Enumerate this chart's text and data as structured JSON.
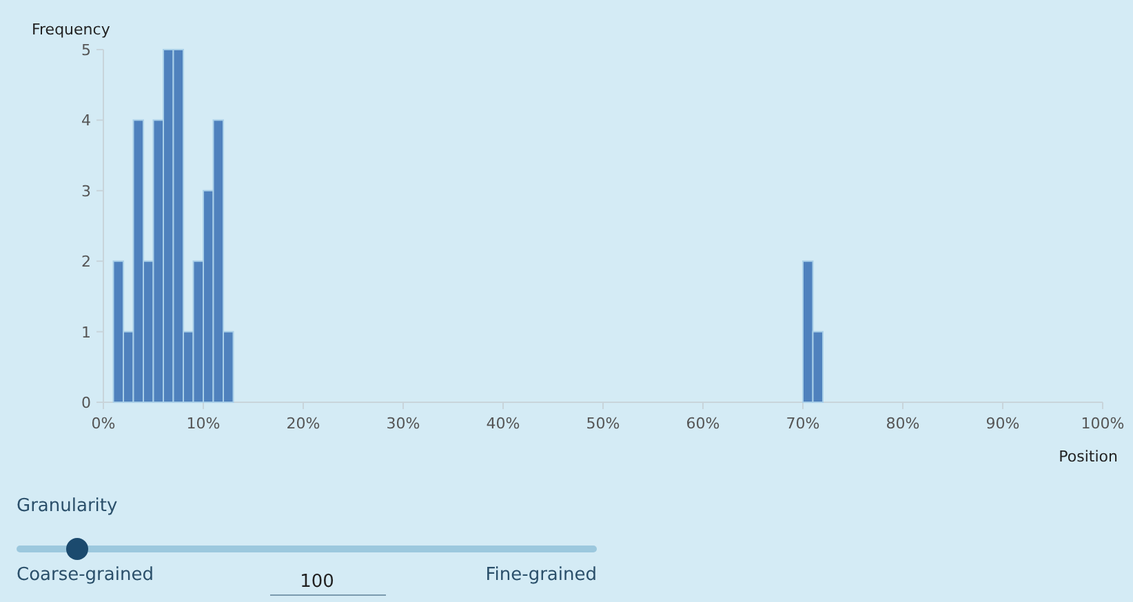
{
  "chart_data": {
    "type": "histogram",
    "xlabel": "Position",
    "ylabel": "Frequency",
    "color": "#4f81bd",
    "bins": [
      1,
      2,
      3,
      4,
      5,
      6,
      7,
      8,
      9,
      10,
      11,
      12,
      13,
      14,
      15,
      16,
      17,
      18,
      19,
      20,
      21,
      22,
      23,
      24,
      25,
      26,
      27,
      28,
      29,
      30,
      31,
      32,
      33,
      34,
      35,
      36,
      37,
      38,
      39,
      40,
      41,
      42,
      43,
      44,
      45,
      46,
      47,
      48,
      49,
      50,
      51,
      52,
      53,
      54,
      55,
      56,
      57,
      58,
      59,
      60,
      61,
      62,
      63,
      64,
      65,
      66,
      67,
      68,
      69,
      70,
      71,
      72
    ],
    "values": [
      2,
      1,
      4,
      2,
      4,
      5,
      5,
      1,
      2,
      3,
      4,
      1,
      0,
      0,
      0,
      0,
      0,
      0,
      0,
      0,
      0,
      0,
      0,
      0,
      0,
      0,
      0,
      0,
      0,
      0,
      0,
      0,
      0,
      0,
      0,
      0,
      0,
      0,
      0,
      0,
      0,
      0,
      0,
      0,
      0,
      0,
      0,
      0,
      0,
      0,
      0,
      0,
      0,
      0,
      0,
      0,
      0,
      0,
      0,
      0,
      0,
      0,
      0,
      0,
      0,
      0,
      0,
      0,
      0,
      2,
      1
    ],
    "xlim": [
      0,
      100
    ],
    "xticks": [
      {
        "value": 0,
        "label": "0%"
      },
      {
        "value": 10,
        "label": "10%"
      },
      {
        "value": 20,
        "label": "20%"
      },
      {
        "value": 30,
        "label": "30%"
      },
      {
        "value": 40,
        "label": "40%"
      },
      {
        "value": 50,
        "label": "50%"
      },
      {
        "value": 60,
        "label": "60%"
      },
      {
        "value": 70,
        "label": "70%"
      },
      {
        "value": 80,
        "label": "80%"
      },
      {
        "value": 90,
        "label": "90%"
      },
      {
        "value": 100,
        "label": "100%"
      }
    ],
    "ylim": [
      0,
      5
    ],
    "yticks": [
      0,
      1,
      2,
      3,
      4,
      5
    ],
    "grid": false,
    "annotations": [
      "Granularity",
      "Coarse-grained",
      "100",
      "Fine-grained"
    ]
  }
}
